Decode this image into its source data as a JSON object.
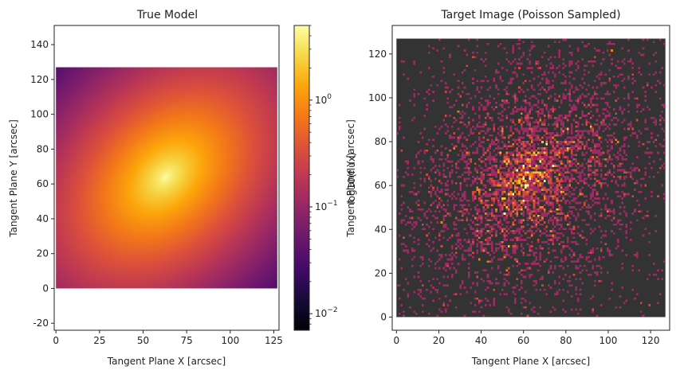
{
  "chart_data": [
    {
      "type": "heatmap",
      "title": "True Model",
      "xlabel": "Tangent Plane X [arcsec]",
      "ylabel": "Tangent Plane Y [arcsec]",
      "xlim": [
        -1,
        128
      ],
      "ylim": [
        -24,
        151
      ],
      "xticks": [
        "0",
        "25",
        "50",
        "75",
        "100",
        "125"
      ],
      "xtick_values": [
        0,
        25,
        50,
        75,
        100,
        125
      ],
      "yticks": [
        "-20",
        "0",
        "20",
        "40",
        "60",
        "80",
        "100",
        "120",
        "140"
      ],
      "ytick_values": [
        -20,
        0,
        20,
        40,
        60,
        80,
        100,
        120,
        140
      ],
      "image_extent": {
        "x": [
          0,
          127
        ],
        "y": [
          0,
          127
        ]
      },
      "colormap": "inferno",
      "model": {
        "center_x": 63,
        "center_y": 64,
        "axis_ratio": 0.7,
        "angle_deg": 45,
        "peak_value": 5.0,
        "min_value": 0.007
      },
      "colorbar": {
        "label": "log10(flux)",
        "scale": "log",
        "range": [
          0.007,
          5.0
        ],
        "ticks": [
          {
            "base": "10",
            "exp": "0",
            "value": 1.0
          },
          {
            "base": "10",
            "exp": "−1",
            "value": 0.1
          },
          {
            "base": "10",
            "exp": "−2",
            "value": 0.01
          }
        ]
      }
    },
    {
      "type": "heatmap",
      "title": "Target Image (Poisson Sampled)",
      "xlabel": "Tangent Plane X [arcsec]",
      "ylabel": "Tangent Plane Y [arcsec]",
      "xlim": [
        -2,
        129
      ],
      "ylim": [
        -6,
        133
      ],
      "xticks": [
        "0",
        "20",
        "40",
        "60",
        "80",
        "100",
        "120"
      ],
      "xtick_values": [
        0,
        20,
        40,
        60,
        80,
        100,
        120
      ],
      "yticks": [
        "0",
        "20",
        "40",
        "60",
        "80",
        "100",
        "120"
      ],
      "ytick_values": [
        0,
        20,
        40,
        60,
        80,
        100,
        120
      ],
      "image_extent": {
        "x": [
          0,
          127
        ],
        "y": [
          0,
          127
        ]
      },
      "background_color": "#333333",
      "colormap": "inferno",
      "sampling": "poisson",
      "pixel_size": 1
    }
  ],
  "colors": {
    "page_background": "#ffffff",
    "axis": "#222222",
    "empty_pixel": "#333333"
  }
}
